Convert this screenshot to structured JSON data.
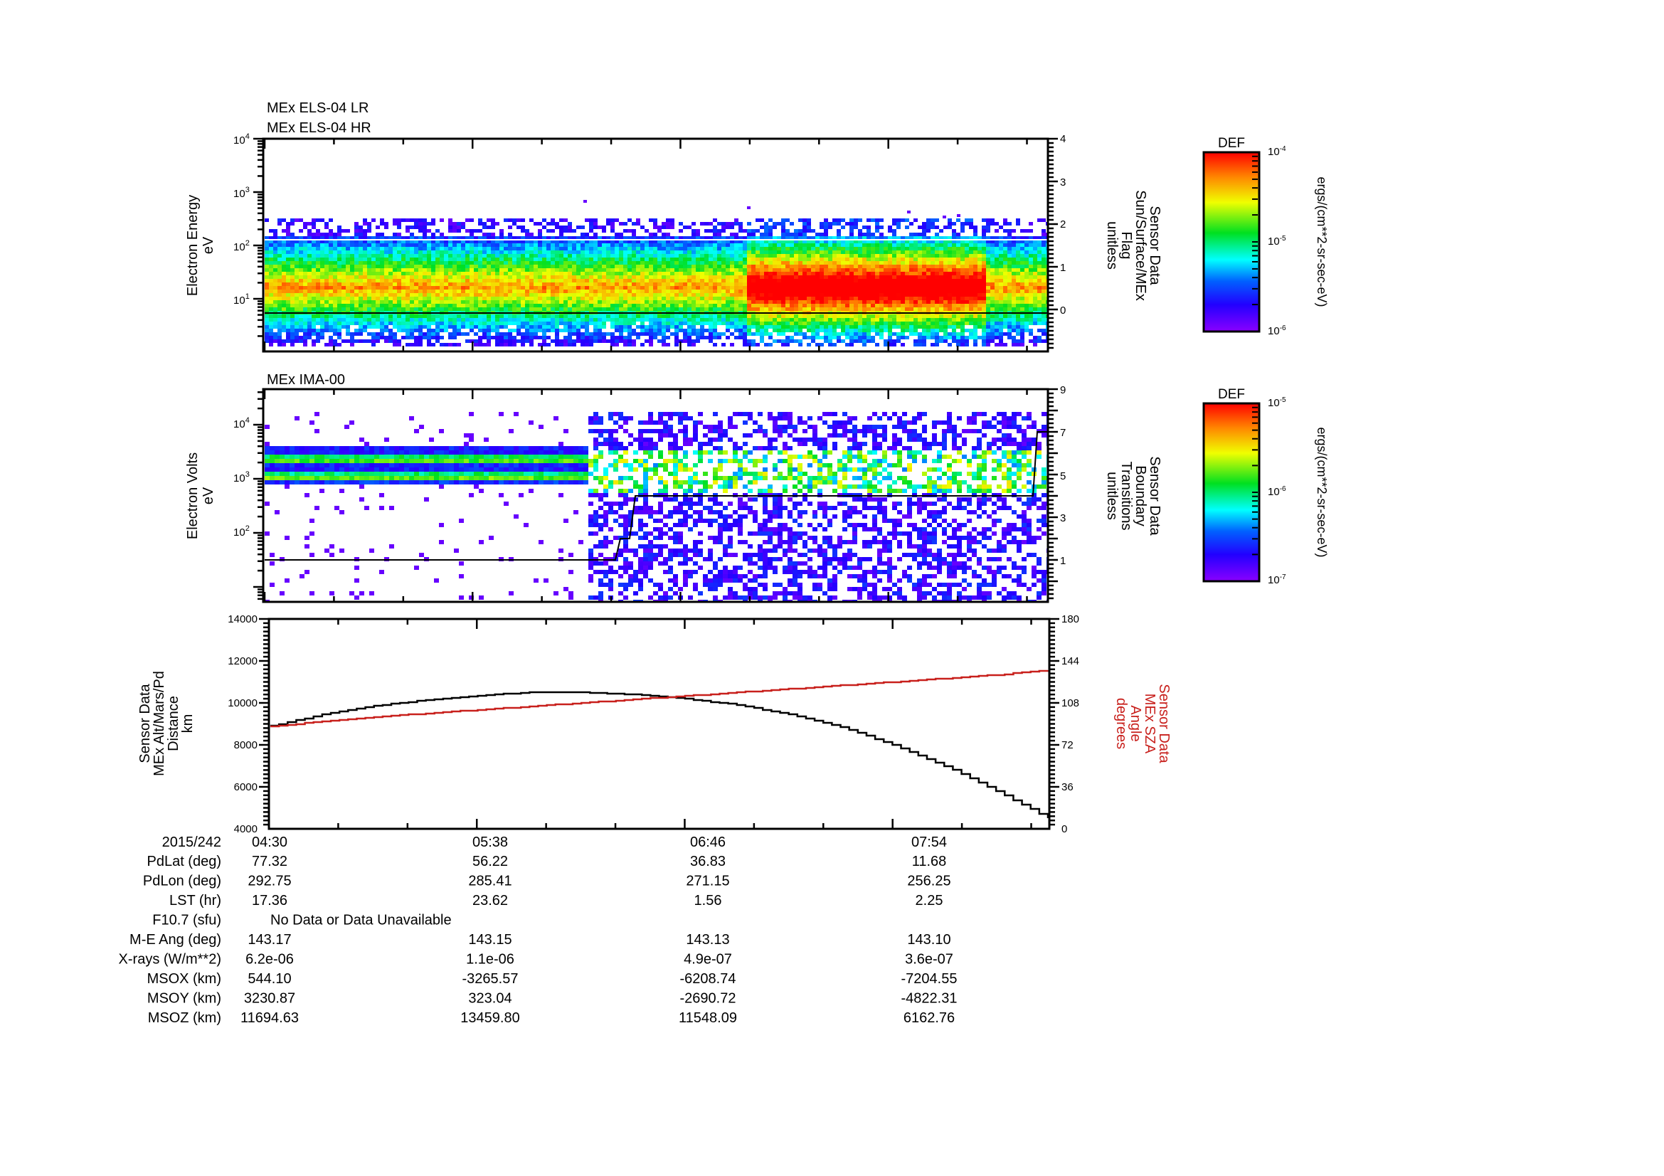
{
  "panels": [
    {
      "titles": [
        "MEx ELS-04 LR",
        "MEx ELS-04 HR"
      ],
      "ylabel": [
        "Electron Energy",
        "eV"
      ],
      "yticks": [
        {
          "label": "10",
          "exp": "4"
        },
        {
          "label": "10",
          "exp": "3"
        },
        {
          "label": "10",
          "exp": "2"
        },
        {
          "label": "10",
          "exp": "1"
        }
      ],
      "y2label": [
        "Sensor Data",
        "Sun/Surface/MEx",
        "Flag",
        "unitless"
      ],
      "y2ticks": [
        "4",
        "3",
        "2",
        "1",
        "0"
      ],
      "colorbar": {
        "title": "DEF",
        "ticks": [
          {
            "label": "10",
            "exp": "-4"
          },
          {
            "label": "10",
            "exp": "-5"
          },
          {
            "label": "10",
            "exp": "-6"
          }
        ],
        "unit": "ergs/(cm**2-sr-sec-eV)"
      }
    },
    {
      "titles": [
        "MEx IMA-00"
      ],
      "ylabel": [
        "Electron Volts",
        "eV"
      ],
      "yticks": [
        {
          "label": "10",
          "exp": "4"
        },
        {
          "label": "10",
          "exp": "3"
        },
        {
          "label": "10",
          "exp": "2"
        }
      ],
      "y2label": [
        "Sensor Data",
        "Boundary",
        "Transitions",
        "unitless"
      ],
      "y2ticks": [
        "9",
        "7",
        "5",
        "3",
        "1"
      ],
      "colorbar": {
        "title": "DEF",
        "ticks": [
          {
            "label": "10",
            "exp": "-5"
          },
          {
            "label": "10",
            "exp": "-6"
          },
          {
            "label": "10",
            "exp": "-7"
          }
        ],
        "unit": "ergs/(cm**2-sr-sec-eV)"
      }
    },
    {
      "ylabel": [
        "Sensor Data",
        "MEx Alt/Mars/Pd",
        "Distance",
        "km"
      ],
      "yticks": [
        "14000",
        "12000",
        "10000",
        "8000",
        "6000",
        "4000"
      ],
      "y2label": [
        "Sensor Data",
        "MEx SZA",
        "Angle",
        "degrees"
      ],
      "y2ticks": [
        "180",
        "144",
        "108",
        "72",
        "36",
        "0"
      ]
    }
  ],
  "ephemeris": {
    "date": "2015/242",
    "times": [
      "04:30",
      "05:38",
      "06:46",
      "07:54"
    ],
    "rows": [
      {
        "label": "PdLat (deg)",
        "values": [
          "77.32",
          "56.22",
          "36.83",
          "11.68"
        ]
      },
      {
        "label": "PdLon (deg)",
        "values": [
          "292.75",
          "285.41",
          "271.15",
          "256.25"
        ]
      },
      {
        "label": "LST (hr)",
        "values": [
          "17.36",
          "23.62",
          "1.56",
          "2.25"
        ]
      },
      {
        "label": "F10.7 (sfu)",
        "span": "No Data or Data Unavailable"
      },
      {
        "label": "M-E Ang (deg)",
        "values": [
          "143.17",
          "143.15",
          "143.13",
          "143.10"
        ]
      },
      {
        "label": "X-rays (W/m**2)",
        "values": [
          "6.2e-06",
          "1.1e-06",
          "4.9e-07",
          "3.6e-07"
        ]
      },
      {
        "label": "MSOX (km)",
        "values": [
          "544.10",
          "-3265.57",
          "-6208.74",
          "-7204.55"
        ]
      },
      {
        "label": "MSOY (km)",
        "values": [
          "3230.87",
          "323.04",
          "-2690.72",
          "-4822.31"
        ]
      },
      {
        "label": "MSOZ (km)",
        "values": [
          "11694.63",
          "13459.80",
          "11548.09",
          "6162.76"
        ]
      }
    ]
  },
  "colors": {
    "sza_line": "#c8201c",
    "alt_line": "#000000"
  },
  "chart_data": [
    {
      "type": "heatmap",
      "title": "MEx ELS-04 LR / MEx ELS-04 HR",
      "xlabel": "UT 2015/242",
      "x_ticks": [
        "04:30",
        "05:38",
        "06:46",
        "07:54"
      ],
      "ylabel": "Electron Energy (eV)",
      "yscale": "log",
      "ylim": [
        1,
        10000
      ],
      "colorbar": {
        "label": "DEF ergs/(cm**2-sr-sec-eV)",
        "range": [
          1e-06,
          0.0001
        ],
        "scale": "log"
      },
      "description": "Broad electron band ~5-150 eV; peak (green/yellow) around 10-30 eV; intensity rises to red (~1e-4) after ~07:07 through ~08:20",
      "overlay_series": {
        "name": "Sun/Surface/MEx Flag",
        "y2lim": [
          -0.8,
          4
        ],
        "values_by_segment": [
          {
            "x_start": "04:30",
            "x_end": "08:46",
            "value": 0
          }
        ],
        "secondary_white_line_level": 1.7
      }
    },
    {
      "type": "heatmap",
      "title": "MEx IMA-00",
      "xlabel": "UT 2015/242",
      "x_ticks": [
        "04:30",
        "05:38",
        "06:46",
        "07:54"
      ],
      "ylabel": "Electron Volts (eV)",
      "yscale": "log",
      "ylim": [
        3,
        40000
      ],
      "colorbar": {
        "label": "DEF ergs/(cm**2-sr-sec-eV)",
        "range": [
          1e-07,
          1e-05
        ],
        "scale": "log"
      },
      "description": "Two narrow ion bands ~1-3 keV before ~06:05; after that broad noisy coverage 5 eV - 20 keV with striped bands ~0.6-3 keV",
      "overlay_series": {
        "name": "Boundary Transitions",
        "y2lim": [
          -0.3,
          9
        ],
        "steps": [
          {
            "x": "04:30",
            "value": 1
          },
          {
            "x": "06:20",
            "value": 2
          },
          {
            "x": "06:28",
            "value": 4
          },
          {
            "x": "08:38",
            "value": 7
          }
        ]
      }
    },
    {
      "type": "line",
      "title": "",
      "xlabel": "UT 2015/242",
      "x_ticks": [
        "04:30",
        "05:38",
        "06:46",
        "07:54"
      ],
      "x": [
        "04:30",
        "04:47",
        "05:04",
        "05:21",
        "05:38",
        "05:55",
        "06:12",
        "06:29",
        "06:46",
        "07:03",
        "07:20",
        "07:37",
        "07:54",
        "08:11",
        "08:28",
        "08:45"
      ],
      "ylabel": "Sensor Data MEx Alt/Mars/Pd Distance (km)",
      "ylim": [
        4000,
        14000
      ],
      "y2label": "Sensor Data MEx SZA Angle (degrees)",
      "y2lim": [
        0,
        180
      ],
      "series": [
        {
          "name": "MEx Alt/Mars/Pd Distance (km)",
          "axis": "left",
          "color": "#000000",
          "values": [
            8900,
            9450,
            9850,
            10150,
            10350,
            10500,
            10500,
            10400,
            10200,
            9900,
            9450,
            8850,
            8000,
            7000,
            5800,
            4500
          ]
        },
        {
          "name": "MEx SZA Angle (degrees)",
          "axis": "right",
          "color": "#c8201c",
          "values": [
            88,
            92,
            96,
            99,
            102,
            105,
            108,
            111,
            114,
            117,
            120,
            123,
            126,
            129,
            132,
            136
          ]
        }
      ]
    }
  ]
}
